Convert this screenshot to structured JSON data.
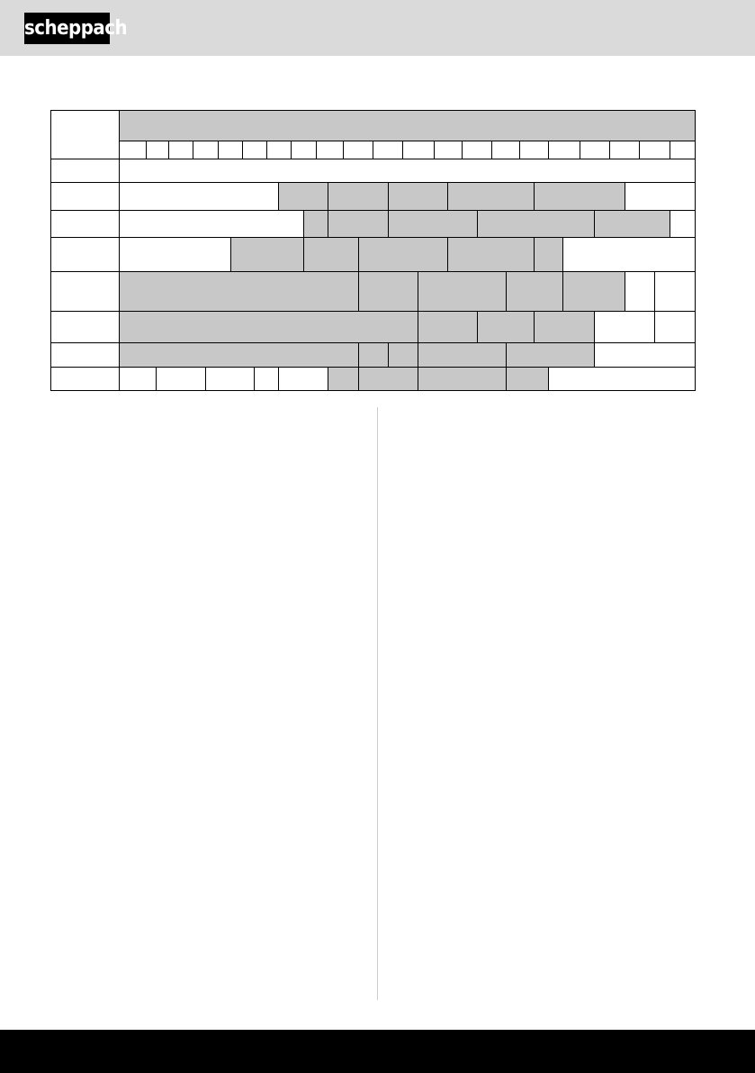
{
  "header": {
    "logo_text": "scheppach",
    "background": "#dadada"
  },
  "table": {
    "cell_fill_shaded": "#c8c8c8",
    "border_color": "#000000"
  },
  "footer": {
    "background": "#000000"
  }
}
